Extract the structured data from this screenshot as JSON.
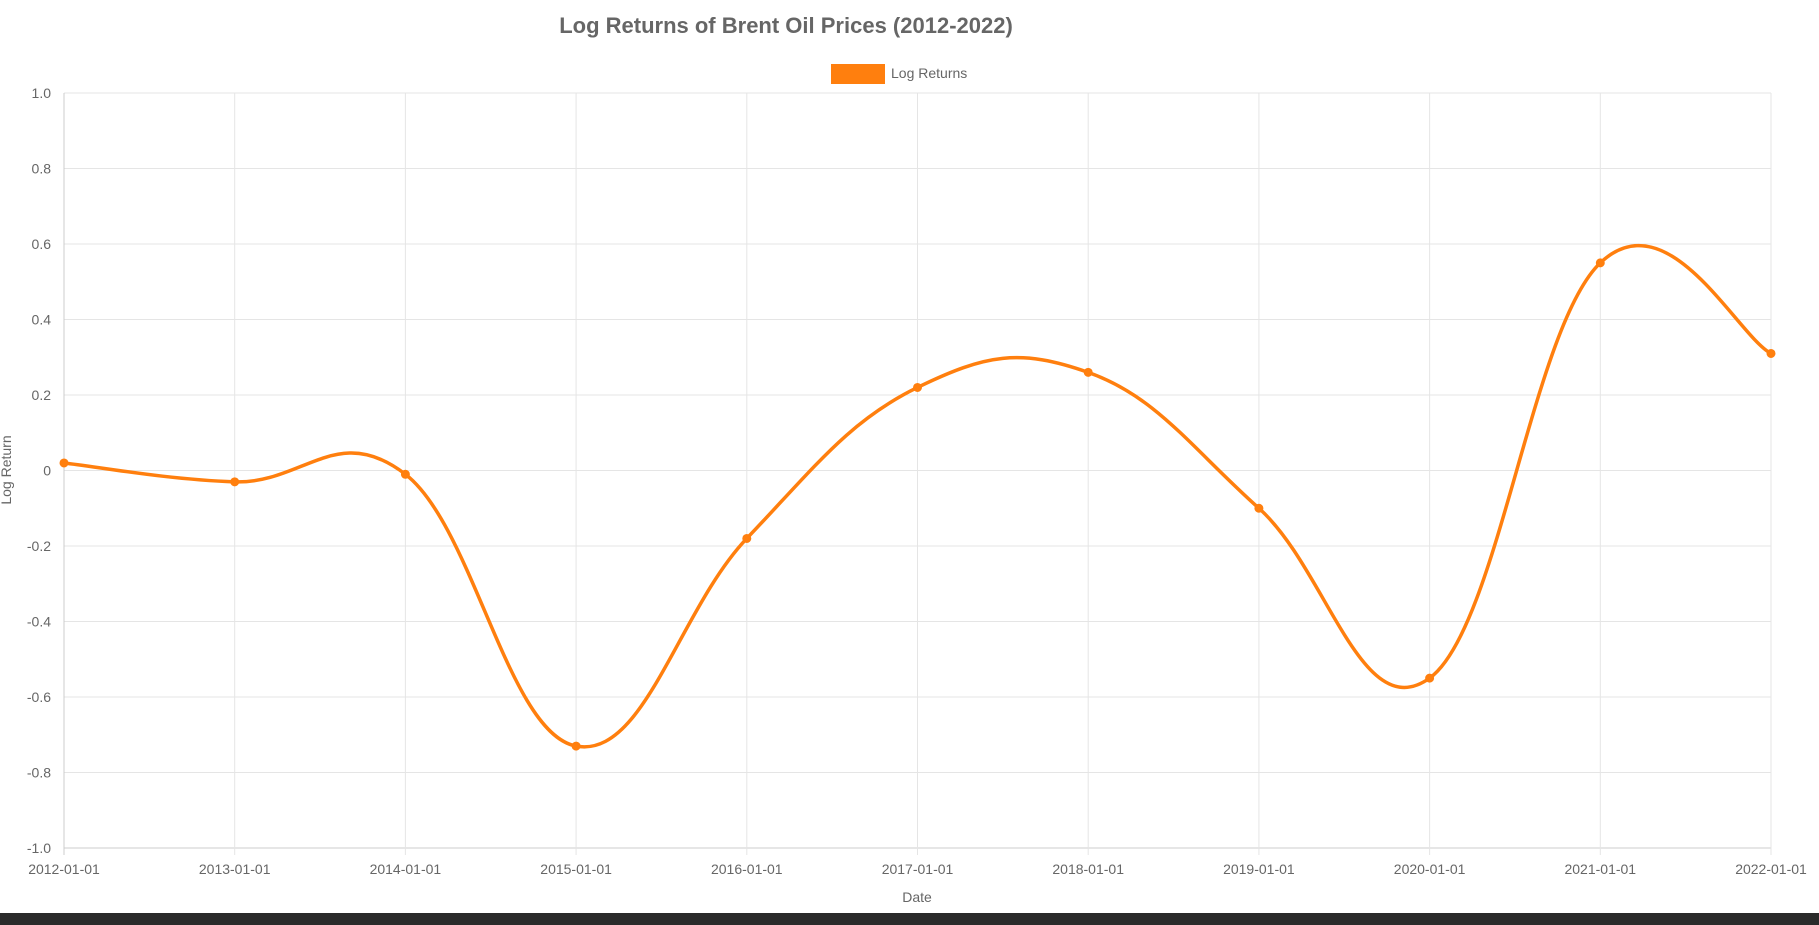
{
  "chart_data": {
    "type": "line",
    "title": "Log Returns of Brent Oil Prices (2012-2022)",
    "xlabel": "Date",
    "ylabel": "Log Return",
    "x": [
      "2012-01-01",
      "2013-01-01",
      "2014-01-01",
      "2015-01-01",
      "2016-01-01",
      "2017-01-01",
      "2018-01-01",
      "2019-01-01",
      "2020-01-01",
      "2021-01-01",
      "2022-01-01"
    ],
    "series": [
      {
        "name": "Log Returns",
        "values": [
          0.02,
          -0.03,
          -0.01,
          -0.73,
          -0.18,
          0.22,
          0.26,
          -0.1,
          -0.55,
          0.55,
          0.31
        ],
        "color": "#ff7f0e"
      }
    ],
    "ylim": [
      -1.0,
      1.0
    ],
    "yticks": [
      "1.0",
      "0.8",
      "0.6",
      "0.4",
      "0.2",
      "0",
      "-0.2",
      "-0.4",
      "-0.6",
      "-0.8",
      "-1.0"
    ],
    "ytick_values": [
      1.0,
      0.8,
      0.6,
      0.4,
      0.2,
      0,
      -0.2,
      -0.4,
      -0.6,
      -0.8,
      -1.0
    ],
    "grid": true,
    "legend_position": "top-center",
    "line_smooth": true
  }
}
